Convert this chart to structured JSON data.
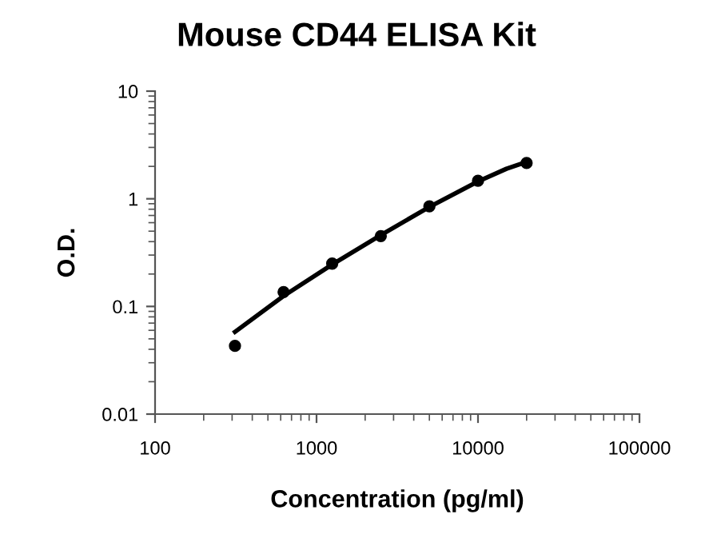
{
  "chart_data": {
    "type": "scatter",
    "title": "Mouse CD44 ELISA Kit",
    "xlabel": "Concentration (pg/ml)",
    "ylabel": "O.D.",
    "log": "xy",
    "xlim": [
      100,
      100000
    ],
    "xticks": [
      100,
      1000,
      10000,
      100000
    ],
    "ylim": [
      0.01,
      10
    ],
    "yticks": [
      0.01,
      0.1,
      1,
      10
    ],
    "grid": false,
    "legend": false,
    "marker": "circle",
    "series": [
      {
        "color": "#000000",
        "x": [
          312.5,
          625,
          1250,
          2500,
          5000,
          10000,
          20000
        ],
        "values": [
          0.043,
          0.136,
          0.25,
          0.45,
          0.85,
          1.47,
          2.15
        ]
      },
      {
        "type": "line",
        "color": "#000000",
        "line_style": "solid",
        "marker": "none",
        "x": [
          312.5,
          625,
          1250,
          2500,
          5000,
          10000,
          15000,
          20000
        ],
        "values": [
          0.058,
          0.125,
          0.245,
          0.46,
          0.84,
          1.45,
          1.9,
          2.2
        ]
      }
    ]
  }
}
